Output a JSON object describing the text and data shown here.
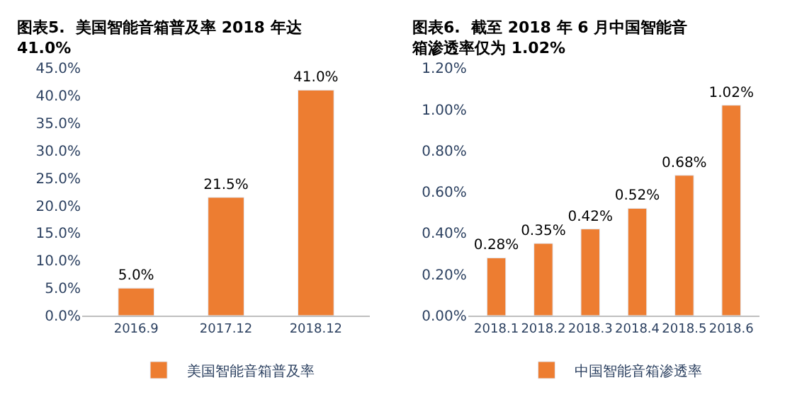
{
  "chart_data": [
    {
      "type": "bar",
      "title": "图表5.  美国智能音箱普及率 2018 年达 41.0%",
      "categories": [
        "2016.9",
        "2017.12",
        "2018.12"
      ],
      "series": [
        {
          "name": "美国智能音箱普及率",
          "color": "#ed7d31",
          "values": [
            5.0,
            21.5,
            41.0
          ],
          "value_labels": [
            "5.0%",
            "21.5%",
            "41.0%"
          ]
        }
      ],
      "ylim": [
        0,
        45
      ],
      "yticks": [
        {
          "value": 0,
          "label": "0.0%"
        },
        {
          "value": 5,
          "label": "5.0%"
        },
        {
          "value": 10,
          "label": "10.0%"
        },
        {
          "value": 15,
          "label": "15.0%"
        },
        {
          "value": 20,
          "label": "20.0%"
        },
        {
          "value": 25,
          "label": "25.0%"
        },
        {
          "value": 30,
          "label": "30.0%"
        },
        {
          "value": 35,
          "label": "35.0%"
        },
        {
          "value": 40,
          "label": "40.0%"
        },
        {
          "value": 45,
          "label": "45.0%"
        }
      ],
      "legend": "bottom",
      "grid": false
    },
    {
      "type": "bar",
      "title": "图表6.  截至 2018 年 6 月中国智能音箱渗透率仅为 1.02%",
      "categories": [
        "2018.1",
        "2018.2",
        "2018.3",
        "2018.4",
        "2018.5",
        "2018.6"
      ],
      "series": [
        {
          "name": "中国智能音箱渗透率",
          "color": "#ed7d31",
          "values": [
            0.28,
            0.35,
            0.42,
            0.52,
            0.68,
            1.02
          ],
          "value_labels": [
            "0.28%",
            "0.35%",
            "0.42%",
            "0.52%",
            "0.68%",
            "1.02%"
          ]
        }
      ],
      "ylim": [
        0,
        1.2
      ],
      "yticks": [
        {
          "value": 0,
          "label": "0.00%"
        },
        {
          "value": 0.2,
          "label": "0.20%"
        },
        {
          "value": 0.4,
          "label": "0.40%"
        },
        {
          "value": 0.6,
          "label": "0.60%"
        },
        {
          "value": 0.8,
          "label": "0.80%"
        },
        {
          "value": 1.0,
          "label": "1.00%"
        },
        {
          "value": 1.2,
          "label": "1.20%"
        }
      ],
      "legend": "bottom",
      "grid": false
    }
  ]
}
